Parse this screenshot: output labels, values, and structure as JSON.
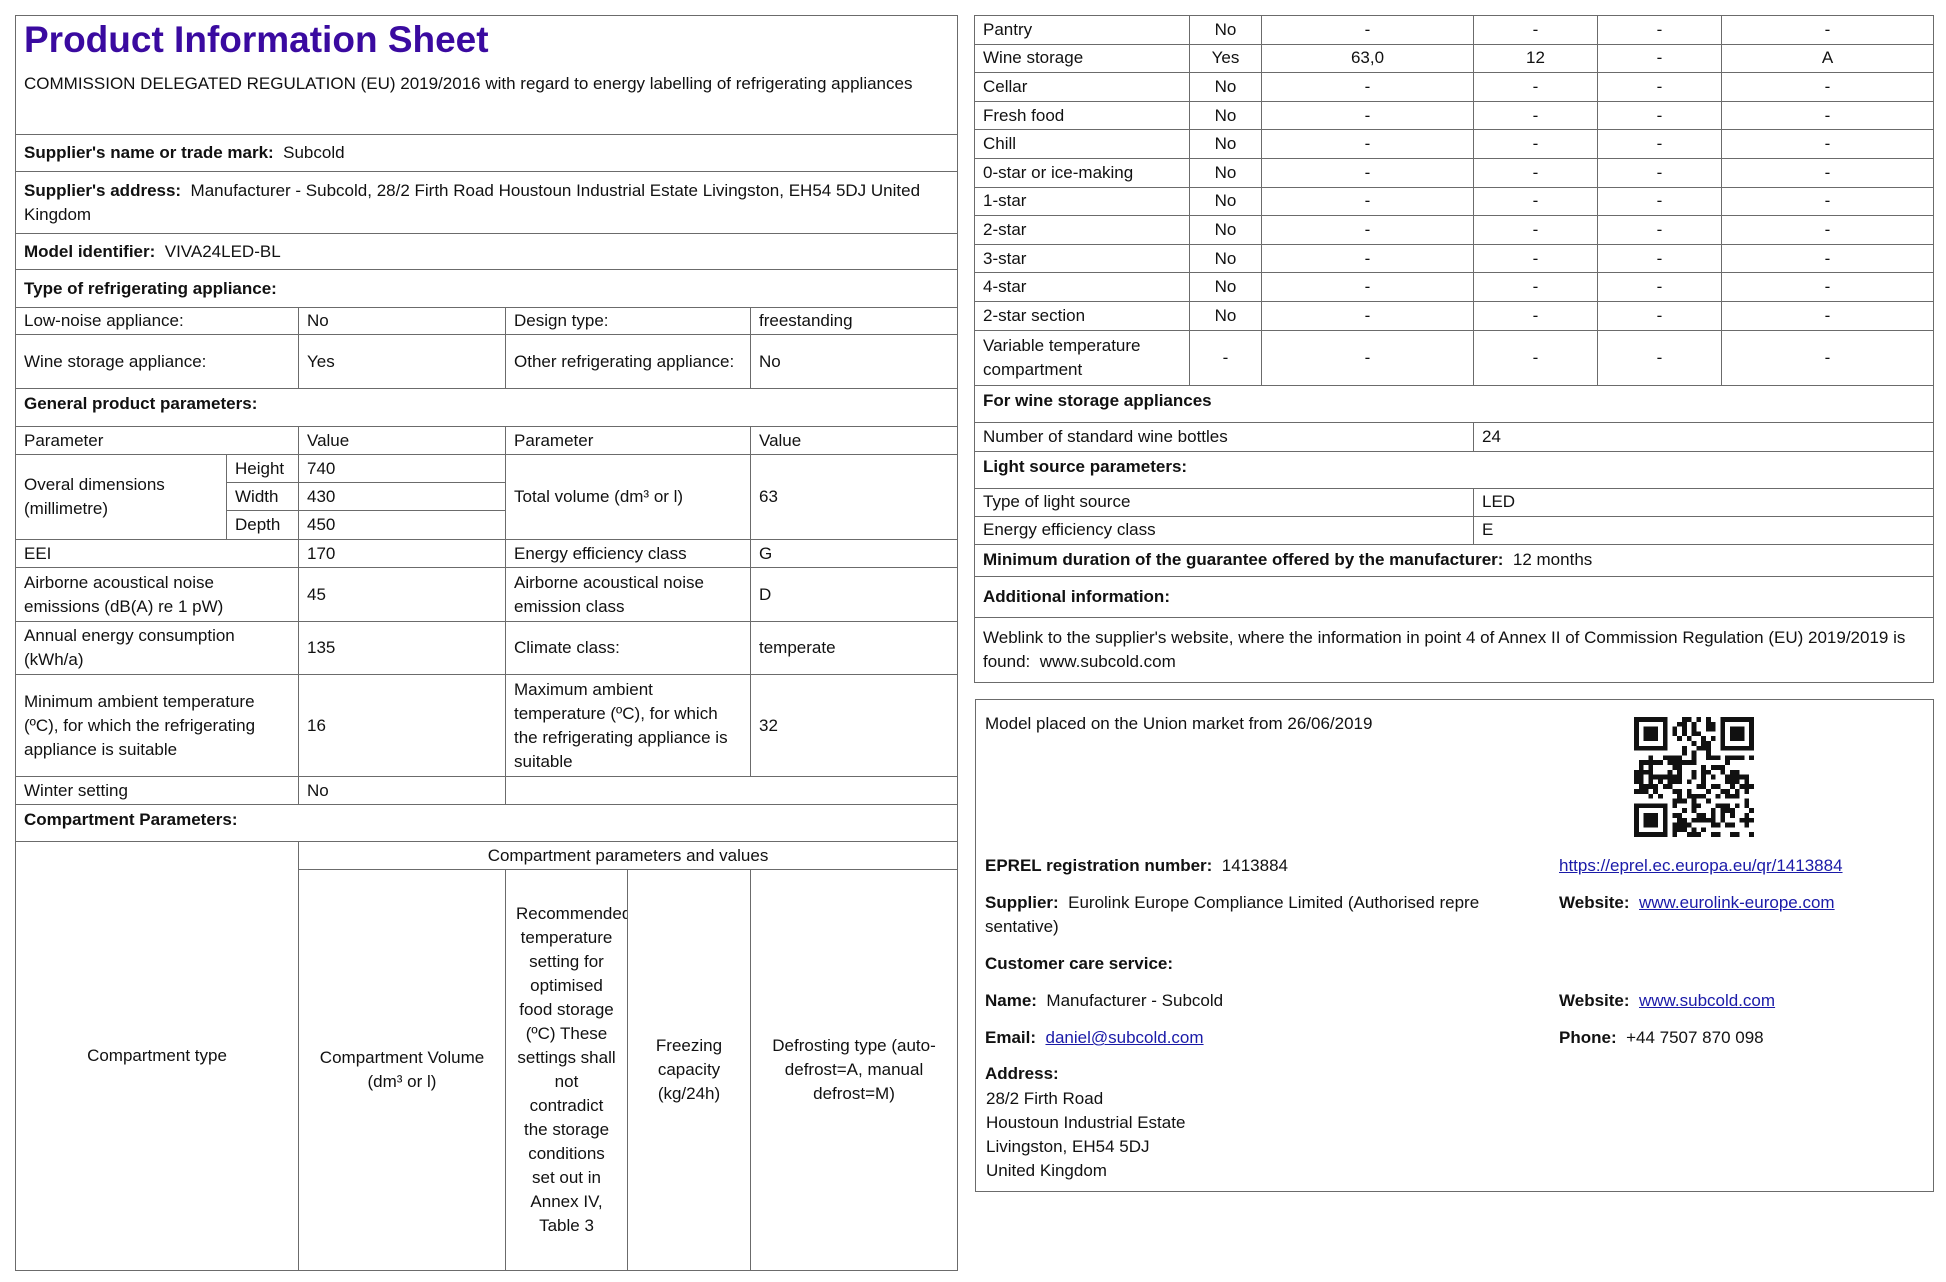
{
  "header": {
    "title": "Product Information Sheet",
    "regulation": "COMMISSION DELEGATED REGULATION (EU) 2019/2016 with regard to energy labelling of refrigerating appliances"
  },
  "supplier_name": {
    "label": "Supplier's name or trade mark:",
    "value": "Subcold"
  },
  "supplier_address": {
    "label": "Supplier's address:",
    "value": "Manufacturer - Subcold, 28/2 Firth Road Houstoun Industrial Estate Livingston, EH54 5DJ United Kingdom"
  },
  "model": {
    "label": "Model identifier:",
    "value": "VIVA24LED-BL"
  },
  "type_heading": "Type of refrigerating appliance:",
  "type": {
    "low_noise_label": "Low-noise appliance:",
    "low_noise": "No",
    "design_label": "Design type:",
    "design": "freestanding",
    "wine_label": "Wine storage appliance:",
    "wine": "Yes",
    "other_label": "Other refrigerating appliance:",
    "other": "No"
  },
  "general_heading": "General product parameters:",
  "general": {
    "param_header": "Parameter",
    "value_header": "Value",
    "dims_label": "Overal dimensions (millimetre)",
    "height_label": "Height",
    "height": "740",
    "width_label": "Width",
    "width": "430",
    "depth_label": "Depth",
    "depth": "450",
    "volume_label": "Total volume (dm³ or l)",
    "volume": "63",
    "eei_label": "EEI",
    "eei": "170",
    "eec_label": "Energy efficiency class",
    "eec": "G",
    "noise_label": "Airborne acoustical noise emissions (dB(A) re 1 pW)",
    "noise": "45",
    "noise_class_label": "Airborne acoustical noise emission class",
    "noise_class": "D",
    "annual_label": "Annual energy consumption (kWh/a)",
    "annual": "135",
    "climate_label": "Climate class:",
    "climate": "temperate",
    "min_temp_label": "Minimum ambient temperature (ºC), for which the refrigerating appliance is suitable",
    "min_temp": "16",
    "max_temp_label": "Maximum ambient temperature (ºC), for which the refrigerating appliance is suitable",
    "max_temp": "32",
    "winter_label": "Winter setting",
    "winter": "No"
  },
  "compartment_heading": "Compartment Parameters:",
  "compartment_header": {
    "type": "Compartment type",
    "group": "Compartment parameters and values",
    "volume": "Compartment Volume (dm³ or l)",
    "temp": "Recommended temperature setting for optimised food storage (ºC) These settings shall not contradict the storage conditions set out in Annex IV, Table 3",
    "freezing": "Freezing capacity (kg/24h)",
    "defrost": "Defrosting type (auto-defrost=A, manual defrost=M)"
  },
  "compartments": [
    [
      "Pantry",
      "No",
      "-",
      "-",
      "-",
      "-"
    ],
    [
      "Wine storage",
      "Yes",
      "63,0",
      "12",
      "-",
      "A"
    ],
    [
      "Cellar",
      "No",
      "-",
      "-",
      "-",
      "-"
    ],
    [
      "Fresh food",
      "No",
      "-",
      "-",
      "-",
      "-"
    ],
    [
      "Chill",
      "No",
      "-",
      "-",
      "-",
      "-"
    ],
    [
      "0-star or ice-making",
      "No",
      "-",
      "-",
      "-",
      "-"
    ],
    [
      "1-star",
      "No",
      "-",
      "-",
      "-",
      "-"
    ],
    [
      "2-star",
      "No",
      "-",
      "-",
      "-",
      "-"
    ],
    [
      "3-star",
      "No",
      "-",
      "-",
      "-",
      "-"
    ],
    [
      "4-star",
      "No",
      "-",
      "-",
      "-",
      "-"
    ],
    [
      "2-star section",
      "No",
      "-",
      "-",
      "-",
      "-"
    ],
    [
      "Variable temperature compartment",
      "-",
      "-",
      "-",
      "-",
      "-"
    ]
  ],
  "wine": {
    "heading": "For wine storage appliances",
    "bottles_label": "Number of standard wine bottles",
    "bottles": "24"
  },
  "light": {
    "heading": "Light source parameters:",
    "type_label": "Type of light source",
    "type": "LED",
    "class_label": "Energy efficiency class",
    "class": "E"
  },
  "guarantee": {
    "label": "Minimum duration of the guarantee offered by the manufacturer:",
    "value": "12 months"
  },
  "additional": {
    "heading": "Additional information:",
    "text": "Weblink to the supplier's website, where the information in point 4 of Annex II of Commission Regulation (EU) 2019/2019 is found:",
    "link": "www.subcold.com"
  },
  "registry": {
    "placed": "Model placed on the Union market from 26/06/2019",
    "eprel_label": "EPREL registration number:",
    "eprel": "1413884",
    "eprel_link": "https://eprel.ec.europa.eu/qr/1413884",
    "supplier_label": "Supplier:",
    "supplier_line1": "Eurolink Europe Compliance Limited (Authorised repre",
    "supplier_line2": "sentative)",
    "supplier_website_label": "Website:",
    "supplier_website": "www.eurolink-europe.com",
    "care_heading": "Customer care service:",
    "name_label": "Name:",
    "name": "Manufacturer - Subcold",
    "care_website_label": "Website:",
    "care_website": "www.subcold.com",
    "email_label": "Email:",
    "email": "daniel@subcold.com",
    "phone_label": "Phone:",
    "phone": "+44 7507 870 098",
    "address_label": "Address:",
    "address_lines": [
      "28/2 Firth Road",
      "Houstoun Industrial Estate",
      "Livingston, EH54 5DJ",
      "United Kingdom"
    ]
  },
  "colors": {
    "title": "#3a0aa0",
    "link": "#1a1aa8",
    "border": "#6b6b6b"
  },
  "icons": {
    "qr": "qr-code-icon"
  }
}
